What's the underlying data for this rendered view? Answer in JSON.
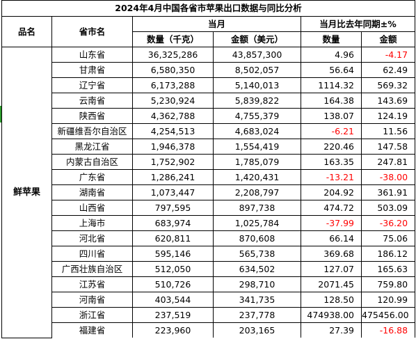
{
  "title": "2024年4月中国各省市苹果出口数据与同比分析",
  "headers": {
    "category": "品名",
    "province": "省市名",
    "current_month": "当月",
    "yoy": "当月比去年同期±%",
    "qty": "数量（千克）",
    "amount": "金额（美元）",
    "yoy_qty": "数量",
    "yoy_amount": "金额"
  },
  "category": "鲜苹果",
  "rows": [
    {
      "province": "山东省",
      "qty": "36,325,286",
      "amount": "43,857,300",
      "yoy_qty": "4.96",
      "yoy_amount": "-4.17"
    },
    {
      "province": "甘肃省",
      "qty": "6,580,350",
      "amount": "8,502,057",
      "yoy_qty": "56.64",
      "yoy_amount": "62.49"
    },
    {
      "province": "辽宁省",
      "qty": "6,173,288",
      "amount": "5,140,013",
      "yoy_qty": "1114.32",
      "yoy_amount": "569.32"
    },
    {
      "province": "云南省",
      "qty": "5,230,924",
      "amount": "5,839,822",
      "yoy_qty": "164.38",
      "yoy_amount": "143.69"
    },
    {
      "province": "陕西省",
      "qty": "4,362,788",
      "amount": "4,755,379",
      "yoy_qty": "138.07",
      "yoy_amount": "124.19"
    },
    {
      "province": "新疆维吾尔自治区",
      "qty": "4,254,513",
      "amount": "4,683,024",
      "yoy_qty": "-6.21",
      "yoy_amount": "11.56"
    },
    {
      "province": "黑龙江省",
      "qty": "1,946,378",
      "amount": "1,554,419",
      "yoy_qty": "220.46",
      "yoy_amount": "147.58"
    },
    {
      "province": "内蒙古自治区",
      "qty": "1,752,902",
      "amount": "1,785,079",
      "yoy_qty": "163.35",
      "yoy_amount": "247.81"
    },
    {
      "province": "广东省",
      "qty": "1,286,241",
      "amount": "1,420,431",
      "yoy_qty": "-13.21",
      "yoy_amount": "-38.00"
    },
    {
      "province": "湖南省",
      "qty": "1,073,447",
      "amount": "2,208,797",
      "yoy_qty": "204.92",
      "yoy_amount": "361.91"
    },
    {
      "province": "山西省",
      "qty": "797,595",
      "amount": "897,738",
      "yoy_qty": "474.72",
      "yoy_amount": "503.09"
    },
    {
      "province": "上海市",
      "qty": "683,974",
      "amount": "1,025,784",
      "yoy_qty": "-37.99",
      "yoy_amount": "-36.20"
    },
    {
      "province": "河北省",
      "qty": "620,811",
      "amount": "870,608",
      "yoy_qty": "66.14",
      "yoy_amount": "75.06"
    },
    {
      "province": "四川省",
      "qty": "595,146",
      "amount": "565,738",
      "yoy_qty": "369.68",
      "yoy_amount": "186.12"
    },
    {
      "province": "广西壮族自治区",
      "qty": "512,050",
      "amount": "634,502",
      "yoy_qty": "127.07",
      "yoy_amount": "165.63"
    },
    {
      "province": "江苏省",
      "qty": "510,726",
      "amount": "298,710",
      "yoy_qty": "2071.45",
      "yoy_amount": "759.80"
    },
    {
      "province": "河南省",
      "qty": "403,544",
      "amount": "341,735",
      "yoy_qty": "128.50",
      "yoy_amount": "120.99"
    },
    {
      "province": "浙江省",
      "qty": "237,519",
      "amount": "237,778",
      "yoy_qty": "474938.00",
      "yoy_amount": "475456.00"
    },
    {
      "province": "福建省",
      "qty": "223,960",
      "amount": "203,165",
      "yoy_qty": "27.39",
      "yoy_amount": "-16.88"
    }
  ],
  "colors": {
    "negative": "#ff0000",
    "marker": "#2e9b2e"
  }
}
